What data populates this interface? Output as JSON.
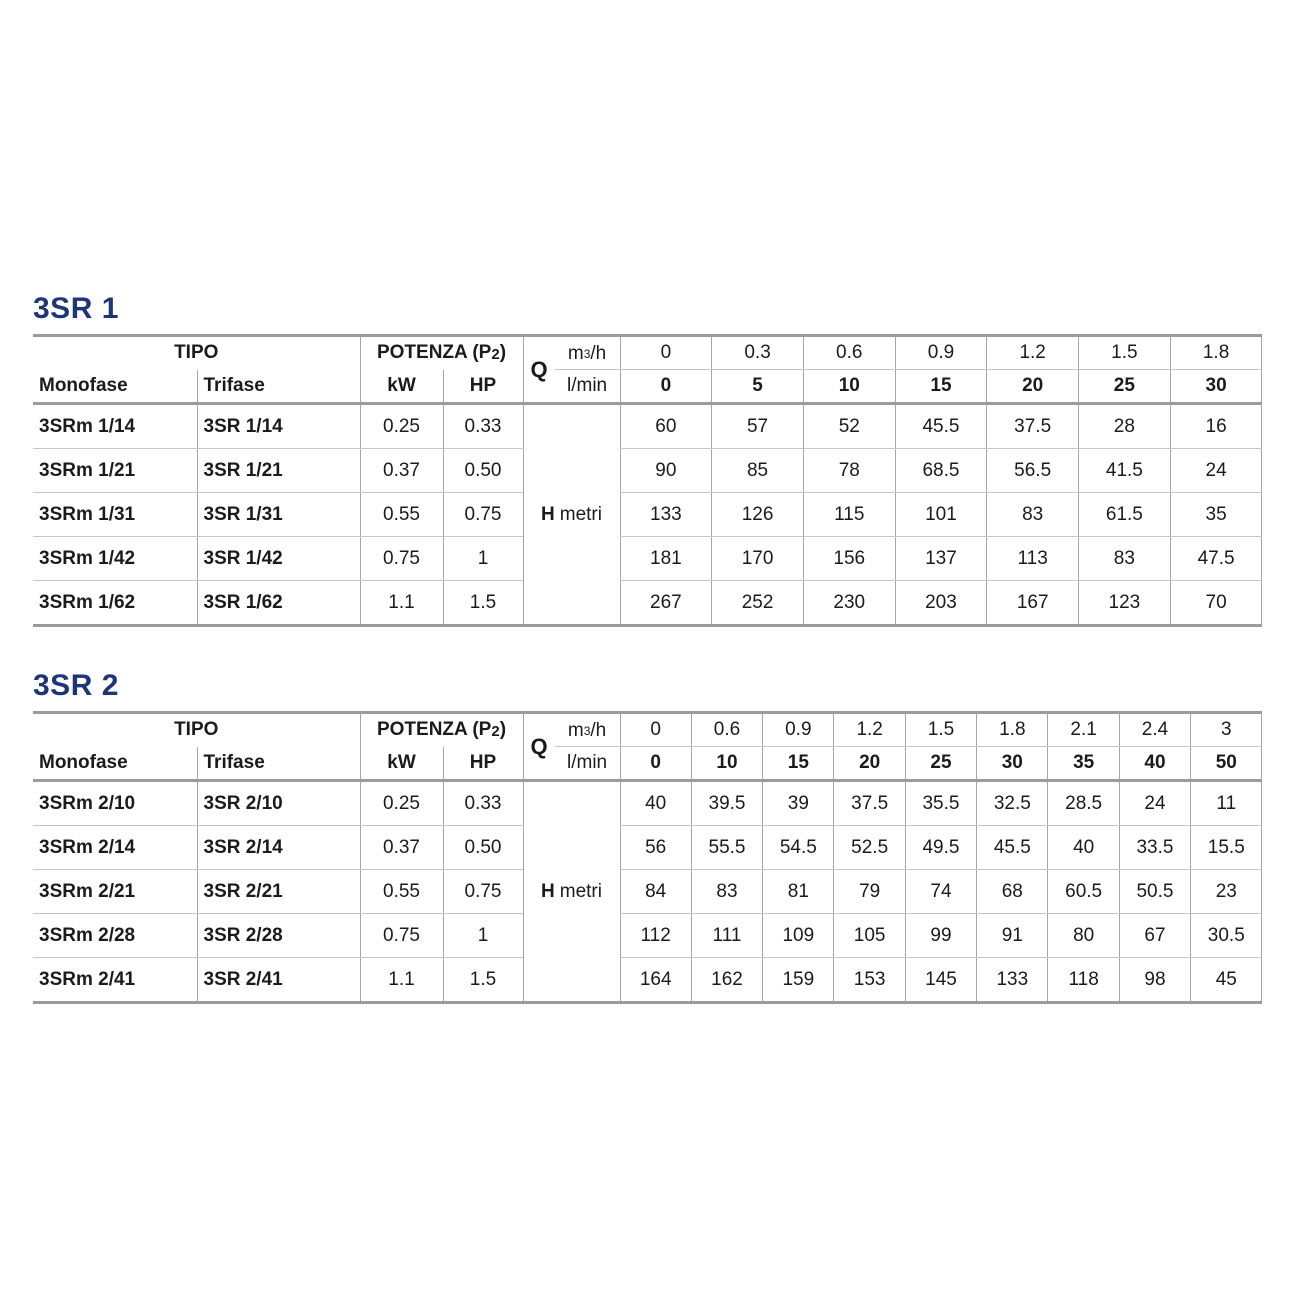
{
  "colors": {
    "title": "#1e3577",
    "text": "#1b1b1b",
    "border_heavy": "#9b9b9b",
    "border_light": "#c6c6c6",
    "border_vertical": "#a6a6a6"
  },
  "labels": {
    "tipo": "TIPO",
    "monofase": "Monofase",
    "trifase": "Trifase",
    "potenza_prefix": "POTENZA (P",
    "potenza_sub": "2",
    "potenza_suffix": ")",
    "kw": "kW",
    "hp": "HP",
    "q": "Q",
    "unit_top_prefix": "m",
    "unit_top_sup": "3",
    "unit_top_suffix": "/h",
    "unit_bottom": "l/min",
    "h": "H",
    "metri": "metri"
  },
  "tables": [
    {
      "title": "3SR 1",
      "flow_top": [
        "0",
        "0.3",
        "0.6",
        "0.9",
        "1.2",
        "1.5",
        "1.8"
      ],
      "flow_bottom": [
        "0",
        "5",
        "10",
        "15",
        "20",
        "25",
        "30"
      ],
      "rows": [
        {
          "monofase": "3SRm 1/14",
          "trifase": "3SR 1/14",
          "kw": "0.25",
          "hp": "0.33",
          "h": [
            "60",
            "57",
            "52",
            "45.5",
            "37.5",
            "28",
            "16"
          ]
        },
        {
          "monofase": "3SRm 1/21",
          "trifase": "3SR 1/21",
          "kw": "0.37",
          "hp": "0.50",
          "h": [
            "90",
            "85",
            "78",
            "68.5",
            "56.5",
            "41.5",
            "24"
          ]
        },
        {
          "monofase": "3SRm 1/31",
          "trifase": "3SR 1/31",
          "kw": "0.55",
          "hp": "0.75",
          "h": [
            "133",
            "126",
            "115",
            "101",
            "83",
            "61.5",
            "35"
          ]
        },
        {
          "monofase": "3SRm 1/42",
          "trifase": "3SR 1/42",
          "kw": "0.75",
          "hp": "1",
          "h": [
            "181",
            "170",
            "156",
            "137",
            "113",
            "83",
            "47.5"
          ]
        },
        {
          "monofase": "3SRm 1/62",
          "trifase": "3SR 1/62",
          "kw": "1.1",
          "hp": "1.5",
          "h": [
            "267",
            "252",
            "230",
            "203",
            "167",
            "123",
            "70"
          ]
        }
      ]
    },
    {
      "title": "3SR 2",
      "flow_top": [
        "0",
        "0.6",
        "0.9",
        "1.2",
        "1.5",
        "1.8",
        "2.1",
        "2.4",
        "3"
      ],
      "flow_bottom": [
        "0",
        "10",
        "15",
        "20",
        "25",
        "30",
        "35",
        "40",
        "50"
      ],
      "rows": [
        {
          "monofase": "3SRm 2/10",
          "trifase": "3SR 2/10",
          "kw": "0.25",
          "hp": "0.33",
          "h": [
            "40",
            "39.5",
            "39",
            "37.5",
            "35.5",
            "32.5",
            "28.5",
            "24",
            "11"
          ]
        },
        {
          "monofase": "3SRm 2/14",
          "trifase": "3SR 2/14",
          "kw": "0.37",
          "hp": "0.50",
          "h": [
            "56",
            "55.5",
            "54.5",
            "52.5",
            "49.5",
            "45.5",
            "40",
            "33.5",
            "15.5"
          ]
        },
        {
          "monofase": "3SRm 2/21",
          "trifase": "3SR 2/21",
          "kw": "0.55",
          "hp": "0.75",
          "h": [
            "84",
            "83",
            "81",
            "79",
            "74",
            "68",
            "60.5",
            "50.5",
            "23"
          ]
        },
        {
          "monofase": "3SRm 2/28",
          "trifase": "3SR 2/28",
          "kw": "0.75",
          "hp": "1",
          "h": [
            "112",
            "111",
            "109",
            "105",
            "99",
            "91",
            "80",
            "67",
            "30.5"
          ]
        },
        {
          "monofase": "3SRm 2/41",
          "trifase": "3SR 2/41",
          "kw": "1.1",
          "hp": "1.5",
          "h": [
            "164",
            "162",
            "159",
            "153",
            "145",
            "133",
            "118",
            "98",
            "45"
          ]
        }
      ]
    }
  ]
}
